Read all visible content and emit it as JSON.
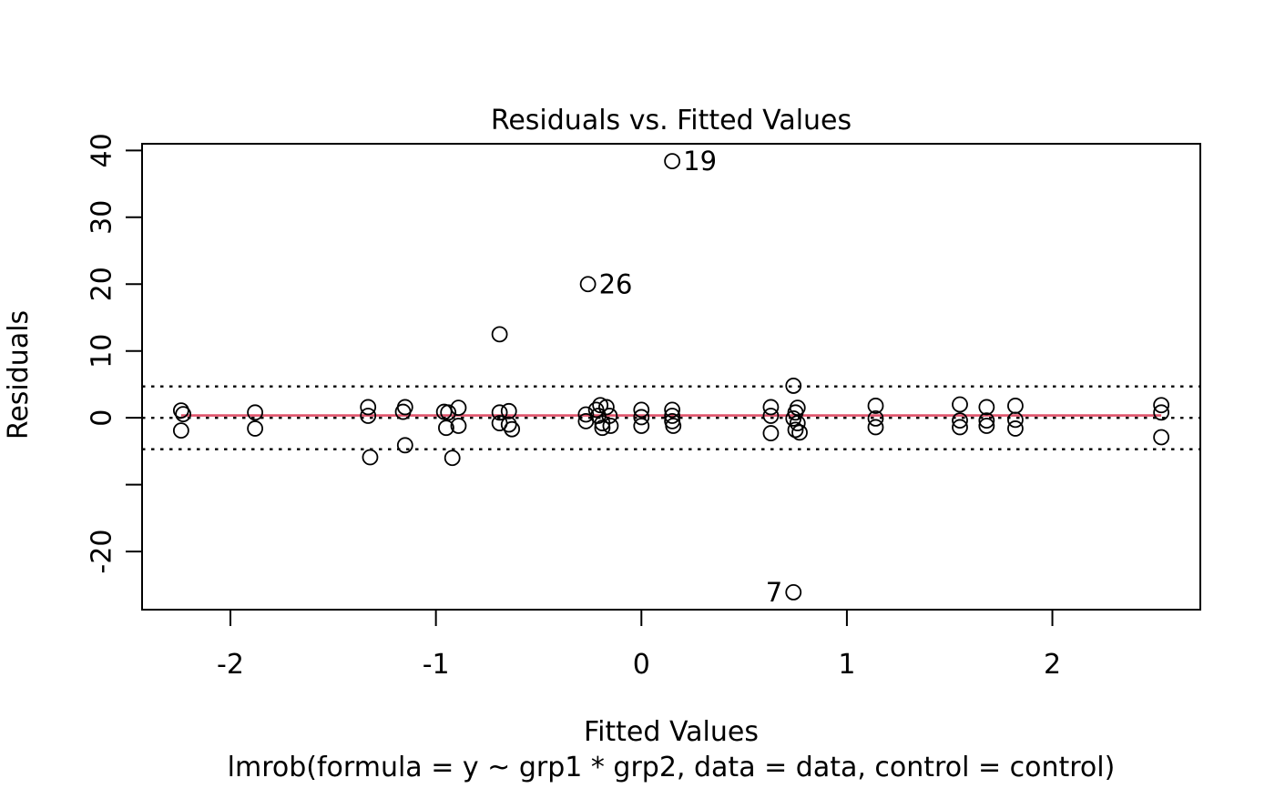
{
  "chart_data": {
    "type": "scatter",
    "title": "Residuals vs. Fitted Values",
    "xlabel": "Fitted Values",
    "ylabel": "Residuals",
    "subtitle": "lmrob(formula = y ~ grp1 * grp2, data = data, control = control)",
    "xlim": [
      -2.43,
      2.72
    ],
    "ylim": [
      -28.7,
      41.0
    ],
    "grid": false,
    "x_ticks": [
      {
        "value": -2,
        "label": "-2"
      },
      {
        "value": -1,
        "label": "-1"
      },
      {
        "value": 0,
        "label": "0"
      },
      {
        "value": 1,
        "label": "1"
      },
      {
        "value": 2,
        "label": "2"
      }
    ],
    "y_ticks": [
      {
        "value": 40,
        "label": "40"
      },
      {
        "value": 30,
        "label": "30"
      },
      {
        "value": 20,
        "label": "20"
      },
      {
        "value": 10,
        "label": "10"
      },
      {
        "value": 0,
        "label": "0"
      },
      {
        "value": -10,
        "label": ""
      },
      {
        "value": -20,
        "label": "-20"
      }
    ],
    "reference_lines": {
      "dotted_y": [
        4.7,
        0,
        -4.7
      ],
      "fit_line": {
        "y": 0.35,
        "x_start": -2.24,
        "x_end": 2.53,
        "color": "#DF536B"
      }
    },
    "point_color": "#000000",
    "points": [
      [
        -2.24,
        1.1
      ],
      [
        -2.23,
        0.55
      ],
      [
        -2.24,
        -1.9
      ],
      [
        -1.88,
        0.8
      ],
      [
        -1.88,
        -1.6
      ],
      [
        -1.33,
        1.6
      ],
      [
        -1.33,
        0.3
      ],
      [
        -1.32,
        -5.9
      ],
      [
        -1.15,
        1.6
      ],
      [
        -1.16,
        0.9
      ],
      [
        -1.15,
        -4.1
      ],
      [
        -0.96,
        0.9
      ],
      [
        -0.94,
        0.8
      ],
      [
        -0.89,
        1.5
      ],
      [
        -0.95,
        -1.5
      ],
      [
        -0.89,
        -1.2
      ],
      [
        -0.92,
        -6.0
      ],
      [
        -0.69,
        0.8
      ],
      [
        -0.645,
        1.0
      ],
      [
        -0.69,
        -0.8
      ],
      [
        -0.645,
        -1.0
      ],
      [
        -0.63,
        -1.7
      ],
      [
        -0.69,
        12.5
      ],
      [
        -0.27,
        0.5
      ],
      [
        -0.27,
        -0.5
      ],
      [
        -0.22,
        1.2
      ],
      [
        -0.21,
        0.3
      ],
      [
        -0.2,
        1.9
      ],
      [
        -0.19,
        -0.8
      ],
      [
        -0.17,
        1.6
      ],
      [
        -0.155,
        0.3
      ],
      [
        -0.15,
        -1.2
      ],
      [
        -0.19,
        -1.5
      ],
      [
        0.0,
        1.2
      ],
      [
        0.0,
        0.1
      ],
      [
        0.0,
        -1.2
      ],
      [
        0.15,
        1.2
      ],
      [
        0.15,
        0.3
      ],
      [
        0.15,
        -0.5
      ],
      [
        0.155,
        -1.2
      ],
      [
        0.63,
        1.6
      ],
      [
        0.63,
        0.3
      ],
      [
        0.63,
        -2.3
      ],
      [
        0.74,
        4.8
      ],
      [
        0.76,
        1.5
      ],
      [
        0.75,
        0.8
      ],
      [
        0.74,
        -0.1
      ],
      [
        0.76,
        -0.8
      ],
      [
        0.75,
        -1.8
      ],
      [
        0.77,
        -2.2
      ],
      [
        1.14,
        1.8
      ],
      [
        1.14,
        -0.1
      ],
      [
        1.14,
        -1.4
      ],
      [
        1.55,
        2.0
      ],
      [
        1.55,
        -0.4
      ],
      [
        1.55,
        -1.4
      ],
      [
        1.68,
        1.6
      ],
      [
        1.68,
        -0.4
      ],
      [
        1.68,
        -1.2
      ],
      [
        1.82,
        1.8
      ],
      [
        1.82,
        -0.3
      ],
      [
        1.82,
        -1.6
      ],
      [
        2.53,
        1.9
      ],
      [
        2.53,
        0.8
      ],
      [
        2.53,
        -2.9
      ]
    ],
    "labeled_points": [
      {
        "label": "19",
        "x": 0.15,
        "y": 38.4,
        "side": "right"
      },
      {
        "label": "26",
        "x": -0.26,
        "y": 20.0,
        "side": "right"
      },
      {
        "label": "7",
        "x": 0.74,
        "y": -26.1,
        "side": "left"
      }
    ]
  }
}
